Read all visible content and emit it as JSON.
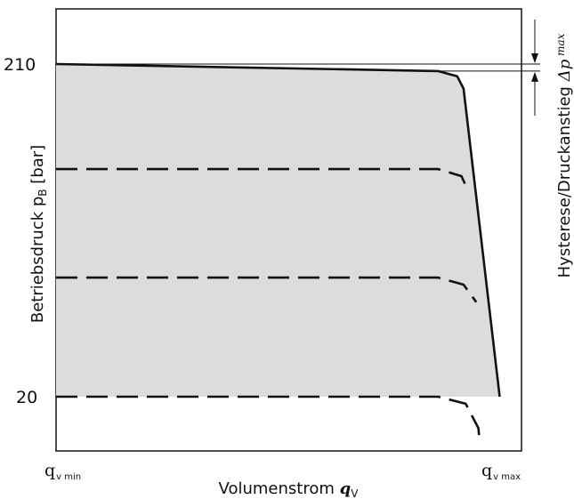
{
  "chart_data": {
    "type": "line",
    "title": "",
    "xlabel": {
      "text": "Volumenstrom ",
      "symbol": "q",
      "symbol_sub": "V"
    },
    "ylabel": {
      "text": "Betriebsdruck p",
      "sub": "B",
      "unit": " [bar]"
    },
    "x_ticks": [
      {
        "main": "q",
        "sub": "v min"
      },
      {
        "main": "q",
        "sub": "v max"
      }
    ],
    "y_ticks": [
      "210",
      "20"
    ],
    "y_tick_values": [
      210,
      20
    ],
    "ylim": [
      -20,
      253
    ],
    "xlim": [
      0,
      1
    ],
    "series": [
      {
        "style": "solid",
        "points": [
          [
            0,
            210
          ],
          [
            0.9,
            206
          ],
          [
            0.945,
            203
          ],
          [
            0.96,
            196
          ],
          [
            1.045,
            20
          ]
        ]
      },
      {
        "style": "dashed",
        "points": [
          [
            0,
            150
          ],
          [
            0.9,
            150
          ],
          [
            0.955,
            146
          ],
          [
            0.97,
            138
          ]
        ]
      },
      {
        "style": "dashed",
        "points": [
          [
            0,
            88
          ],
          [
            0.9,
            88
          ],
          [
            0.96,
            84
          ],
          [
            0.99,
            74
          ]
        ]
      },
      {
        "style": "dashed",
        "points": [
          [
            0,
            20
          ],
          [
            0.9,
            20
          ],
          [
            0.965,
            16
          ],
          [
            0.995,
            2
          ],
          [
            0.998,
            -6
          ]
        ]
      }
    ],
    "annotation": {
      "text": "Hysterese/Druckanstieg ",
      "symbol": "Δp",
      "sub": " max"
    },
    "colors": {
      "fill": "#dcdcdd",
      "line": "#111111",
      "frame": "#111111"
    }
  }
}
